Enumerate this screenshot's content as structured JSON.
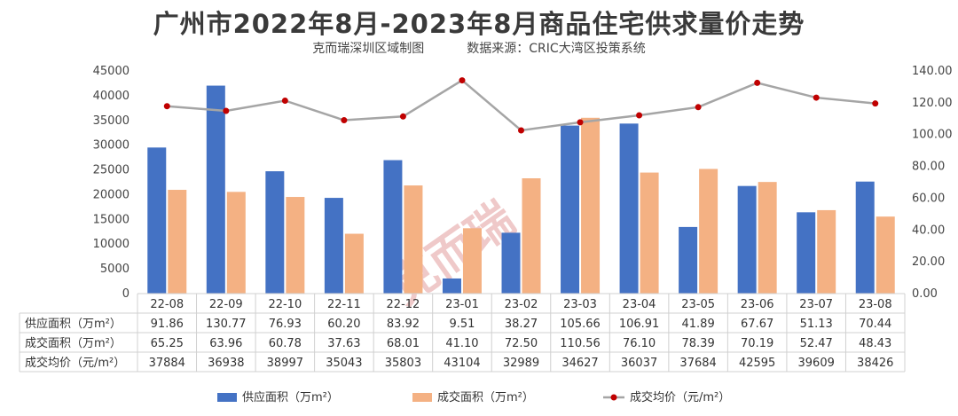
{
  "title": "广州市2022年8月-2023年8月商品住宅供求量价走势",
  "subtitle_left": "克而瑞深圳区域制图",
  "subtitle_right": "数据来源：CRIC大湾区投策系统",
  "watermark": "克而瑞",
  "colors": {
    "supply": "#4472c4",
    "deal": "#f4b183",
    "price": "#a5a5a5",
    "price_marker": "#c00000"
  },
  "chart_data": {
    "type": "bar",
    "categories": [
      "22-08",
      "22-09",
      "22-10",
      "22-11",
      "22-12",
      "23-01",
      "23-02",
      "23-03",
      "23-04",
      "23-05",
      "23-06",
      "23-07",
      "23-08"
    ],
    "series": [
      {
        "name": "供应面积（万m²）",
        "kind": "bar",
        "axis": "right",
        "values": [
          91.86,
          130.77,
          76.93,
          60.2,
          83.92,
          9.51,
          38.27,
          105.66,
          106.91,
          41.89,
          67.67,
          51.13,
          70.44
        ],
        "labels": [
          "91.86",
          "130.77",
          "76.93",
          "60.20",
          "83.92",
          "9.51",
          "38.27",
          "105.66",
          "106.91",
          "41.89",
          "67.67",
          "51.13",
          "70.44"
        ]
      },
      {
        "name": "成交面积（万m²）",
        "kind": "bar",
        "axis": "right",
        "values": [
          65.25,
          63.96,
          60.78,
          37.63,
          68.01,
          41.1,
          72.5,
          110.56,
          76.1,
          78.39,
          70.19,
          52.47,
          48.43
        ],
        "labels": [
          "65.25",
          "63.96",
          "60.78",
          "37.63",
          "68.01",
          "41.10",
          "72.50",
          "110.56",
          "76.10",
          "78.39",
          "70.19",
          "52.47",
          "48.43"
        ]
      },
      {
        "name": "成交均价（元/m²）",
        "kind": "line",
        "axis": "left",
        "values": [
          37884,
          36938,
          38997,
          35043,
          35803,
          43104,
          32989,
          34627,
          36037,
          37684,
          42595,
          39609,
          38426
        ],
        "labels": [
          "37884",
          "36938",
          "38997",
          "35043",
          "35803",
          "43104",
          "32989",
          "34627",
          "36037",
          "37684",
          "42595",
          "39609",
          "38426"
        ]
      }
    ],
    "left_axis": {
      "ticks": [
        "0",
        "5000",
        "10000",
        "15000",
        "20000",
        "25000",
        "30000",
        "35000",
        "40000",
        "45000"
      ],
      "ylim": [
        0,
        45000
      ]
    },
    "right_axis": {
      "ticks": [
        "0.00",
        "20.00",
        "40.00",
        "60.00",
        "80.00",
        "100.00",
        "120.00",
        "140.00"
      ],
      "ylim": [
        0,
        140
      ]
    },
    "legend_position": "bottom",
    "grid": false
  }
}
